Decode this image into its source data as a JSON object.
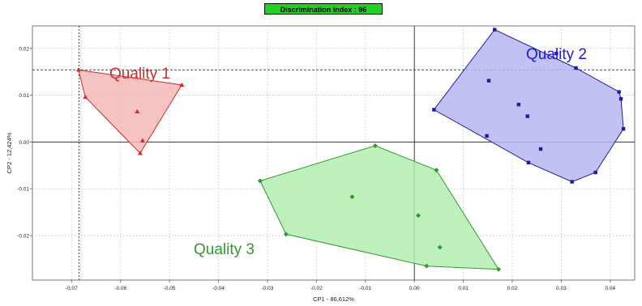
{
  "header": {
    "badge": "Discrimination index : 96"
  },
  "chart_data": {
    "type": "scatter",
    "title": "",
    "xlabel": "CP1 - 86,612%",
    "ylabel": "CP2 - 12,424%",
    "xlim": [
      -0.078,
      0.045
    ],
    "ylim": [
      -0.0295,
      0.0248
    ],
    "xticks": [
      "-0.07",
      "-0.06",
      "-0.05",
      "-0.04",
      "-0.03",
      "-0.02",
      "-0.01",
      "0.00",
      "0.01",
      "0.02",
      "0.03",
      "0.04"
    ],
    "yticks": [
      "0.02",
      "0.01",
      "0.00",
      "-0.01",
      "-0.02"
    ],
    "grid": true,
    "refline_x": -0.0685,
    "refline_y": 0.0154,
    "series": [
      {
        "name": "Quality 1",
        "color": "#d42a2a",
        "fill": "#f4b9b9",
        "marker": "triangle",
        "points": [
          [
            -0.0686,
            0.0154
          ],
          [
            -0.0672,
            0.0096
          ],
          [
            -0.0566,
            0.0065
          ],
          [
            -0.0555,
            0.0003
          ],
          [
            -0.056,
            -0.0024
          ],
          [
            -0.0475,
            0.0122
          ]
        ],
        "hull": [
          [
            -0.0686,
            0.0154
          ],
          [
            -0.0475,
            0.0122
          ],
          [
            -0.056,
            -0.0024
          ],
          [
            -0.0672,
            0.0096
          ]
        ]
      },
      {
        "name": "Quality 2",
        "color": "#1c1ca8",
        "fill": "#b6b6f2",
        "marker": "square",
        "points": [
          [
            0.0164,
            0.024
          ],
          [
            0.029,
            0.0189
          ],
          [
            0.033,
            0.0158
          ],
          [
            0.0152,
            0.0131
          ],
          [
            0.0213,
            0.008
          ],
          [
            0.0231,
            0.0055
          ],
          [
            0.004,
            0.0069
          ],
          [
            0.0148,
            0.0013
          ],
          [
            0.0258,
            -0.0015
          ],
          [
            0.0233,
            -0.0044
          ],
          [
            0.0322,
            -0.0085
          ],
          [
            0.037,
            -0.0065
          ],
          [
            0.0427,
            0.0028
          ],
          [
            0.0422,
            0.0092
          ],
          [
            0.0418,
            0.0107
          ]
        ],
        "hull": [
          [
            0.0164,
            0.024
          ],
          [
            0.033,
            0.0158
          ],
          [
            0.0418,
            0.0107
          ],
          [
            0.0422,
            0.0092
          ],
          [
            0.0427,
            0.0028
          ],
          [
            0.037,
            -0.0065
          ],
          [
            0.0322,
            -0.0085
          ],
          [
            0.0233,
            -0.0044
          ],
          [
            0.004,
            0.0069
          ]
        ]
      },
      {
        "name": "Quality 3",
        "color": "#2f9a2f",
        "fill": "#b3efb0",
        "marker": "diamond",
        "points": [
          [
            -0.008,
            -0.0008
          ],
          [
            0.0045,
            -0.006
          ],
          [
            -0.0315,
            -0.0083
          ],
          [
            -0.0127,
            -0.0117
          ],
          [
            0.0008,
            -0.0157
          ],
          [
            -0.0262,
            -0.0197
          ],
          [
            0.0052,
            -0.0225
          ],
          [
            0.0025,
            -0.0265
          ],
          [
            0.0172,
            -0.0272
          ]
        ],
        "hull": [
          [
            -0.008,
            -0.0008
          ],
          [
            0.0045,
            -0.006
          ],
          [
            0.0172,
            -0.0272
          ],
          [
            0.0025,
            -0.0265
          ],
          [
            -0.0262,
            -0.0197
          ],
          [
            -0.0315,
            -0.0083
          ]
        ]
      }
    ]
  }
}
